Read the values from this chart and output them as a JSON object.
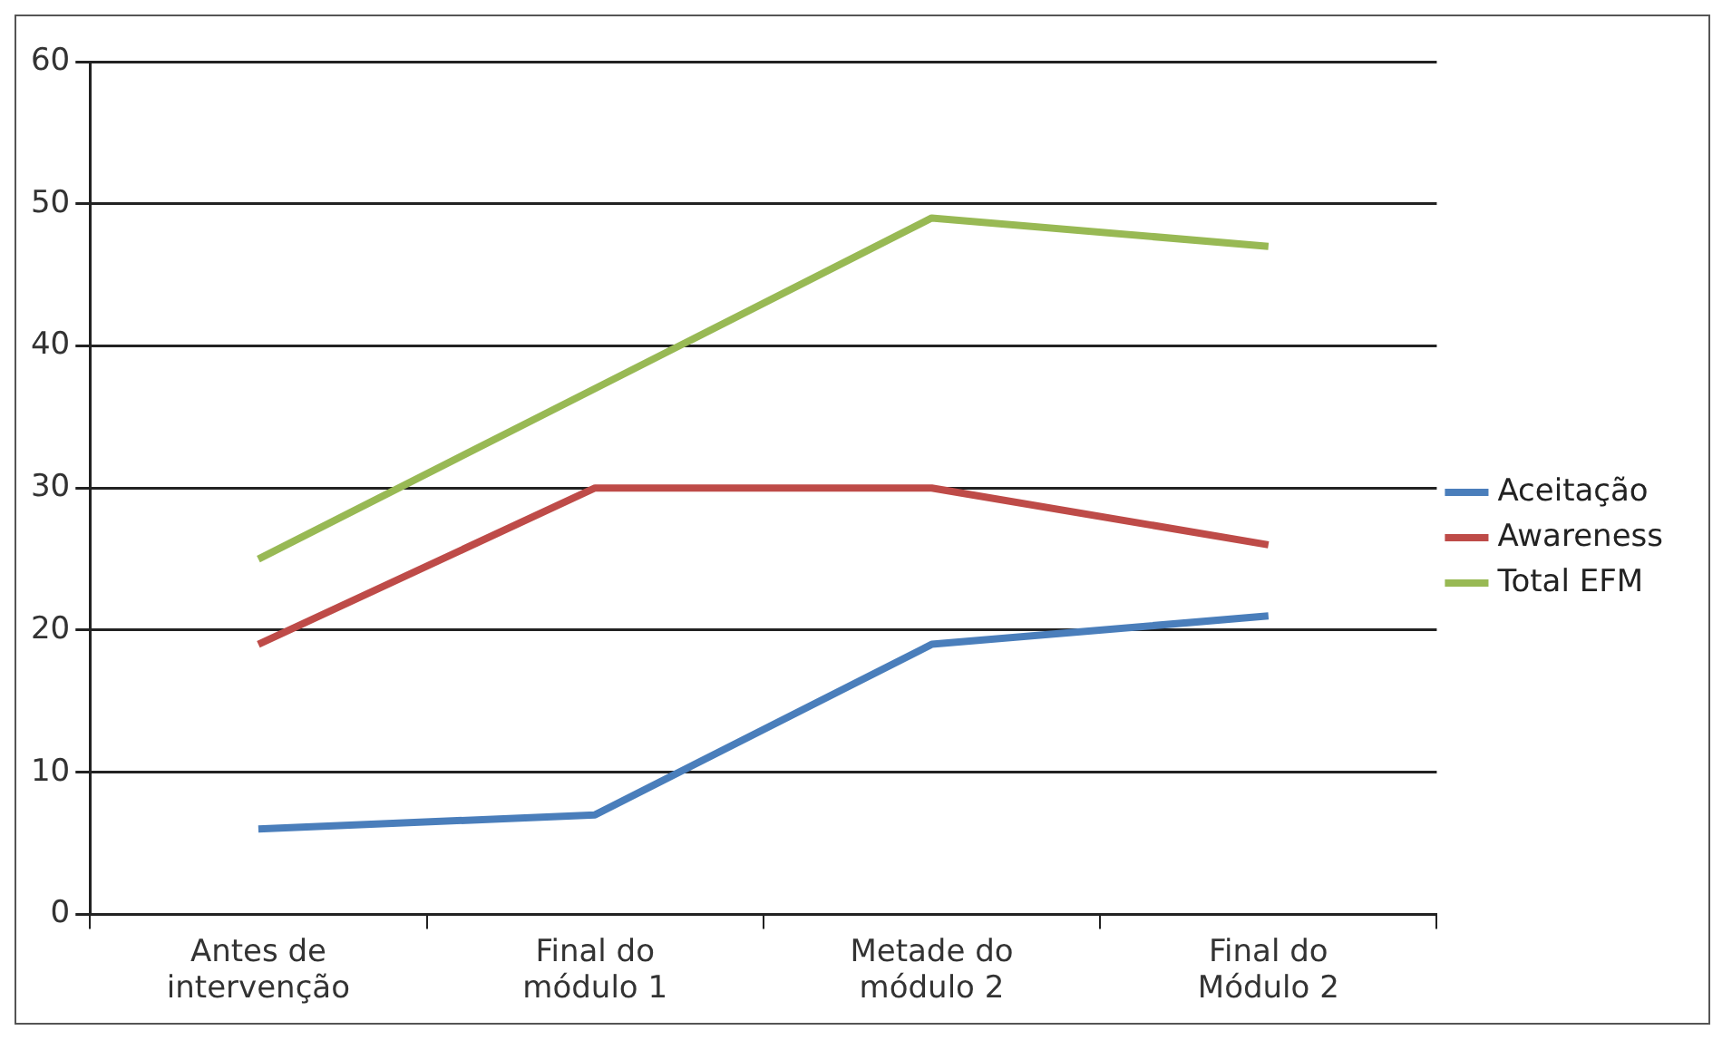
{
  "chart_data": {
    "type": "line",
    "categories": [
      "Antes de intervenção",
      "Final do módulo 1",
      "Metade do módulo 2",
      "Final do Módulo 2"
    ],
    "series": [
      {
        "name": "Aceitação",
        "color": "#4a7ebb",
        "values": [
          6,
          7,
          19,
          21
        ]
      },
      {
        "name": "Awareness",
        "color": "#be4b48",
        "values": [
          19,
          30,
          30,
          26
        ]
      },
      {
        "name": "Total EFM",
        "color": "#98b954",
        "values": [
          25,
          37,
          49,
          47
        ]
      }
    ],
    "ylim": [
      0,
      60
    ],
    "yticks": [
      0,
      10,
      20,
      30,
      40,
      50,
      60
    ],
    "grid": "y",
    "legend": "right",
    "marker": "none",
    "line_style": "solid"
  }
}
